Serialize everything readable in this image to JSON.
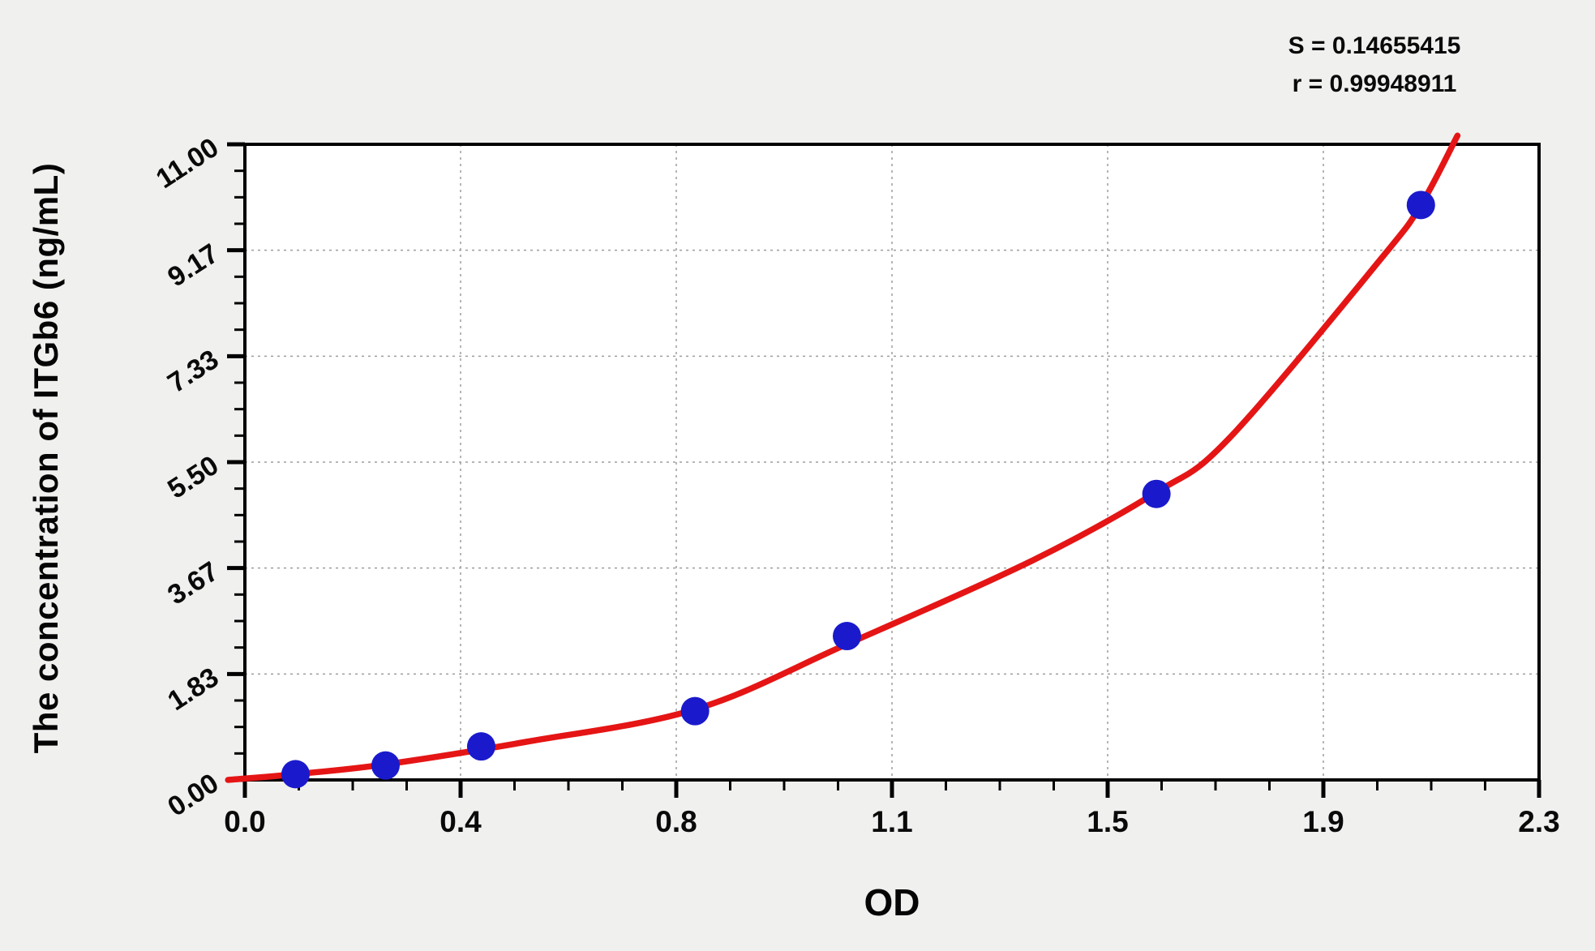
{
  "figure": {
    "background_color": "#f0f0ef",
    "stats": {
      "s_line": "S = 0.14655415",
      "r_line": "r = 0.99948911"
    }
  },
  "chart_data": {
    "type": "scatter",
    "title": "",
    "xlabel": "OD",
    "ylabel": "The concentration of ITGb6 (ng/mL)",
    "xlim": [
      0,
      2.3
    ],
    "ylim": [
      0,
      11
    ],
    "x_tick_labels": [
      "0.0",
      "0.4",
      "0.8",
      "1.1",
      "1.5",
      "1.9",
      "2.3"
    ],
    "y_tick_labels": [
      "0.00",
      "1.83",
      "3.67",
      "5.50",
      "7.33",
      "9.17",
      "11.00"
    ],
    "minor_ticks_per_major": 4,
    "grid": "dashed, at major ticks, both axes",
    "legend_position": "none",
    "S": 0.14655415,
    "r": 0.99948911,
    "series": [
      {
        "name": "standard points",
        "type": "scatter",
        "points": [
          {
            "od": 0.09,
            "conc": 0.1
          },
          {
            "od": 0.25,
            "conc": 0.25
          },
          {
            "od": 0.42,
            "conc": 0.58
          },
          {
            "od": 0.8,
            "conc": 1.19
          },
          {
            "od": 1.07,
            "conc": 2.49
          },
          {
            "od": 1.62,
            "conc": 4.95
          },
          {
            "od": 2.09,
            "conc": 9.95
          }
        ]
      },
      {
        "name": "fitted curve",
        "type": "line",
        "points": [
          {
            "od": -0.03,
            "conc": 0.0
          },
          {
            "od": 0.09,
            "conc": 0.1
          },
          {
            "od": 0.25,
            "conc": 0.27
          },
          {
            "od": 0.5,
            "conc": 0.66
          },
          {
            "od": 0.8,
            "conc": 1.22
          },
          {
            "od": 1.07,
            "conc": 2.35
          },
          {
            "od": 1.4,
            "conc": 3.8
          },
          {
            "od": 1.62,
            "conc": 4.98
          },
          {
            "od": 1.75,
            "conc": 5.92
          },
          {
            "od": 2.02,
            "conc": 9.03
          },
          {
            "od": 2.09,
            "conc": 9.95
          },
          {
            "od": 2.155,
            "conc": 11.15
          }
        ]
      }
    ],
    "colors": {
      "point_fill": "#1a1acc",
      "curve_stroke": "#e51515",
      "grid_line": "#9d9d9d",
      "axis_frame": "#000000",
      "plot_background": "#ffffff",
      "text": "#0a0a0a"
    }
  }
}
